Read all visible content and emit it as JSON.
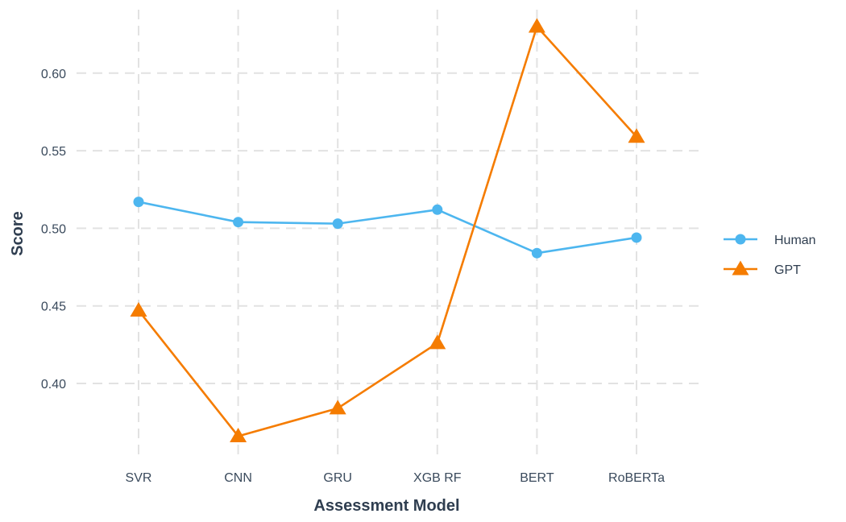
{
  "chart_data": {
    "type": "line",
    "xlabel": "Assessment Model",
    "ylabel": "Score",
    "categories": [
      "SVR",
      "CNN",
      "GRU",
      "XGB RF",
      "BERT",
      "RoBERTa"
    ],
    "ylim": [
      0.35,
      0.64
    ],
    "yticks": [
      "0.40",
      "0.45",
      "0.50",
      "0.55",
      "0.60"
    ],
    "grid": true,
    "legend_position": "right",
    "series": [
      {
        "name": "Human",
        "marker": "circle",
        "color": "#4db6ef",
        "values": [
          0.517,
          0.504,
          0.503,
          0.512,
          0.484,
          0.494
        ]
      },
      {
        "name": "GPT",
        "marker": "triangle",
        "color": "#f57c00",
        "values": [
          0.447,
          0.366,
          0.384,
          0.426,
          0.63,
          0.559
        ]
      }
    ]
  }
}
